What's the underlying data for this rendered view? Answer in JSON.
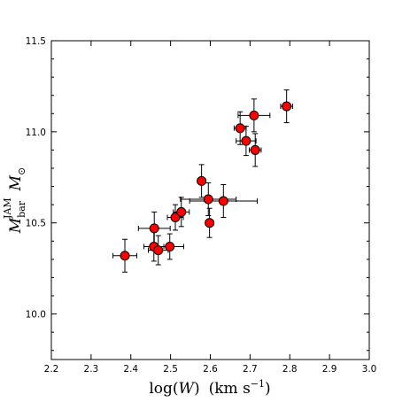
{
  "chart_data": {
    "type": "scatter",
    "title": "",
    "xlabel": "log(W)  (km s^-1 )",
    "xlabel_parts": {
      "main": "log(",
      "var": "W",
      "close": ")",
      "units": "(km s",
      "units_sup": "−1",
      "units_close": ")"
    },
    "ylabel": "M_bar^JAM M_⊙",
    "ylabel_parts": {
      "main": "M",
      "sub": "bar",
      "sup": "JAM",
      "sun": "M",
      "sun_sub": "⊙"
    },
    "xlim": [
      2.2,
      3.0
    ],
    "ylim": [
      9.75,
      11.5
    ],
    "xticks": [
      "2.2",
      "2.3",
      "2.4",
      "2.5",
      "2.6",
      "2.7",
      "2.8",
      "2.9",
      "3.0"
    ],
    "yticks": [
      "10.0",
      "10.5",
      "11.0",
      "11.5"
    ],
    "grid": false,
    "marker_color": "#ff0000",
    "errorbar_color": "#000000",
    "points": [
      {
        "x": 2.385,
        "y": 10.32,
        "xerr": 0.03,
        "yerr": 0.09
      },
      {
        "x": 2.458,
        "y": 10.37,
        "xerr": 0.025,
        "yerr": 0.08
      },
      {
        "x": 2.469,
        "y": 10.35,
        "xerr": 0.025,
        "yerr": 0.08
      },
      {
        "x": 2.459,
        "y": 10.47,
        "xerr": 0.04,
        "yerr": 0.09
      },
      {
        "x": 2.498,
        "y": 10.37,
        "xerr": 0.035,
        "yerr": 0.07
      },
      {
        "x": 2.512,
        "y": 10.53,
        "xerr": 0.02,
        "yerr": 0.07
      },
      {
        "x": 2.527,
        "y": 10.56,
        "xerr": 0.02,
        "yerr": 0.08
      },
      {
        "x": 2.578,
        "y": 10.73,
        "xerr": 0.01,
        "yerr": 0.09
      },
      {
        "x": 2.595,
        "y": 10.63,
        "xerr": 0.07,
        "yerr": 0.09
      },
      {
        "x": 2.598,
        "y": 10.5,
        "xerr": 0.01,
        "yerr": 0.08
      },
      {
        "x": 2.633,
        "y": 10.62,
        "xerr": 0.085,
        "yerr": 0.09
      },
      {
        "x": 2.675,
        "y": 11.02,
        "xerr": 0.015,
        "yerr": 0.09
      },
      {
        "x": 2.69,
        "y": 10.95,
        "xerr": 0.025,
        "yerr": 0.08
      },
      {
        "x": 2.71,
        "y": 11.09,
        "xerr": 0.04,
        "yerr": 0.09
      },
      {
        "x": 2.713,
        "y": 10.9,
        "xerr": 0.015,
        "yerr": 0.09
      },
      {
        "x": 2.792,
        "y": 11.14,
        "xerr": 0.015,
        "yerr": 0.09
      }
    ]
  }
}
